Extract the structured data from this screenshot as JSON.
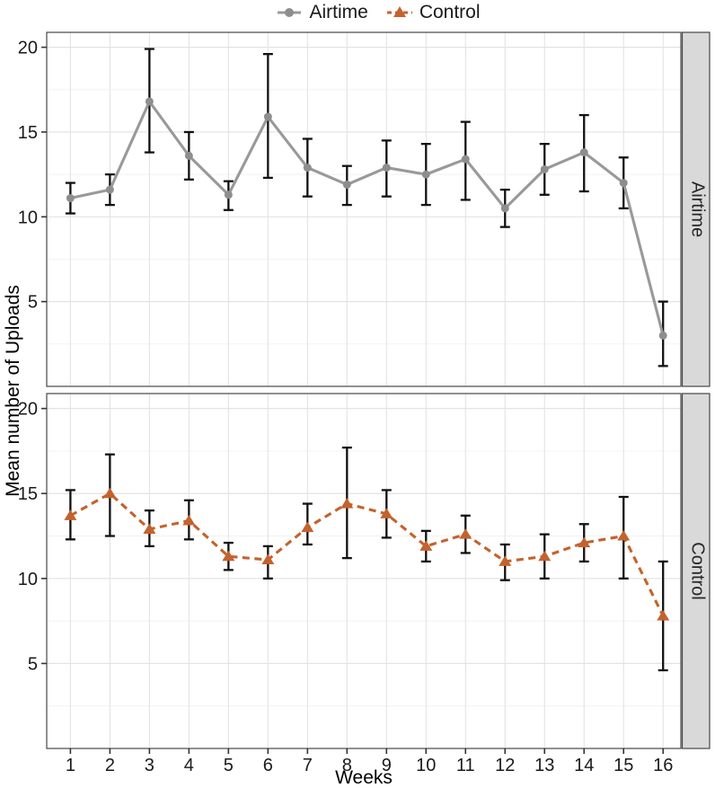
{
  "legend": {
    "items": [
      {
        "label": "Airtime"
      },
      {
        "label": "Control"
      }
    ]
  },
  "chart_data": {
    "type": "line",
    "title": "",
    "xlabel": "Weeks",
    "ylabel": "Mean number of Uploads",
    "x": [
      1,
      2,
      3,
      4,
      5,
      6,
      7,
      8,
      9,
      10,
      11,
      12,
      13,
      14,
      15,
      16
    ],
    "xlim": [
      0.4,
      16.45
    ],
    "ylim": [
      0,
      20.88
    ],
    "y_ticks": [
      5,
      10,
      15,
      20
    ],
    "y_minor_ticks": [
      2.5,
      7.5,
      12.5,
      17.5
    ],
    "grid": "major and minor horizontal, major vertical, light gray on white",
    "legend_position": "top-center",
    "error_bars": "mean with lower/upper interval, black with caps",
    "facet_layout": "two stacked panels with right-side strip labels",
    "facets": [
      {
        "label": "Airtime",
        "series_name": "Airtime",
        "color": "#999999",
        "marker": "circle",
        "line_style": "solid",
        "mean": [
          11.1,
          11.6,
          16.8,
          13.6,
          11.3,
          15.9,
          12.9,
          11.9,
          12.9,
          12.5,
          13.4,
          10.5,
          12.8,
          13.8,
          12.0,
          3.0
        ],
        "lower": [
          10.2,
          10.7,
          13.8,
          12.2,
          10.4,
          12.3,
          11.2,
          10.7,
          11.2,
          10.7,
          11.0,
          9.4,
          11.3,
          11.5,
          10.5,
          1.2
        ],
        "upper": [
          12.0,
          12.5,
          19.9,
          15.0,
          12.1,
          19.6,
          14.6,
          13.0,
          14.5,
          14.3,
          15.6,
          11.6,
          14.3,
          16.0,
          13.5,
          5.0
        ]
      },
      {
        "label": "Control",
        "series_name": "Control",
        "color": "#C4622D",
        "marker": "triangle",
        "line_style": "dashed",
        "mean": [
          13.7,
          15.0,
          12.9,
          13.4,
          11.3,
          11.1,
          13.0,
          14.4,
          13.8,
          11.9,
          12.6,
          11.0,
          11.3,
          12.1,
          12.5,
          7.8
        ],
        "lower": [
          12.3,
          12.5,
          11.9,
          12.3,
          10.5,
          10.0,
          12.0,
          11.2,
          12.4,
          11.0,
          11.5,
          9.9,
          10.0,
          11.0,
          10.0,
          4.6
        ],
        "upper": [
          15.2,
          17.3,
          14.0,
          14.6,
          12.1,
          11.9,
          14.4,
          17.7,
          15.2,
          12.8,
          13.7,
          12.0,
          12.6,
          13.2,
          14.8,
          11.0
        ]
      }
    ],
    "colors": {
      "error_bar": "#111111",
      "strip_background": "#d9d9d9",
      "strip_text": "#262626",
      "panel_border": "#454545",
      "grid_major": "#e3e3e3",
      "grid_minor": "#f0f0f0",
      "tick": "#333333",
      "axis_text": "#1a1a1a"
    }
  }
}
